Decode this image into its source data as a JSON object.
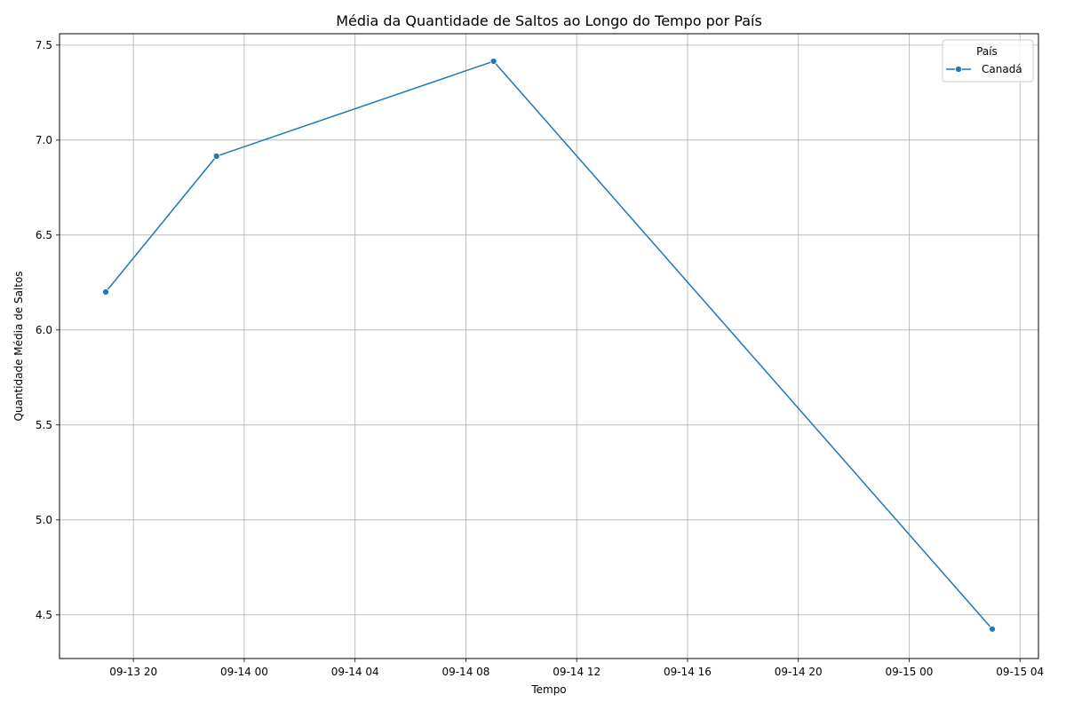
{
  "chart_data": {
    "type": "line",
    "title": "Média da Quantidade de Saltos ao Longo do Tempo por País",
    "xlabel": "Tempo",
    "ylabel": "Quantidade Média de Saltos",
    "x_ticks": [
      "09-13 20",
      "09-14 00",
      "09-14 04",
      "09-14 08",
      "09-14 12",
      "09-14 16",
      "09-14 20",
      "09-15 00",
      "09-15 04"
    ],
    "y_ticks": [
      "4.5",
      "5.0",
      "5.5",
      "6.0",
      "6.5",
      "7.0",
      "7.5"
    ],
    "xlim": [
      "2023-09-13T17:20",
      "2023-09-15T04:40"
    ],
    "ylim": [
      4.27,
      7.56
    ],
    "grid": true,
    "legend": {
      "title": "País",
      "position": "top-right"
    },
    "series": [
      {
        "name": "Canadá",
        "color": "#1f77b4",
        "marker": "circle",
        "points": [
          {
            "x": "2023-09-13T19:00",
            "y": 6.2
          },
          {
            "x": "2023-09-13T23:00",
            "y": 6.915
          },
          {
            "x": "2023-09-14T09:00",
            "y": 7.415
          },
          {
            "x": "2023-09-15T03:00",
            "y": 4.425
          }
        ]
      }
    ]
  }
}
